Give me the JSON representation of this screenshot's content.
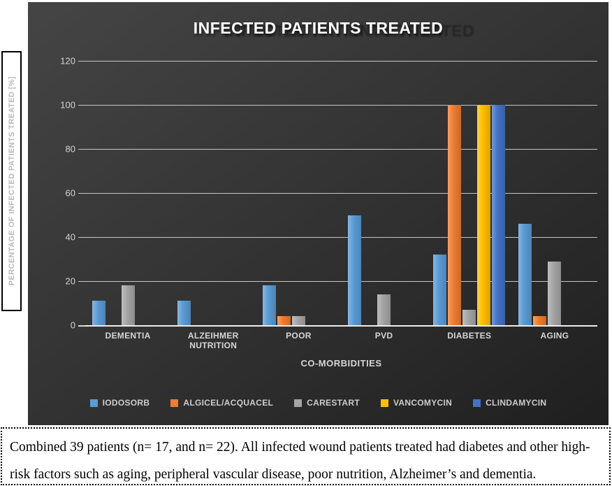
{
  "chart_data": {
    "type": "bar",
    "title": "INFECTED PATIENTS TREATED",
    "xlabel": "CO-MORBIDITIES",
    "ylabel": "PERCENTAGE OF INFECTED PATIENTS TREATED [%]",
    "ylim": [
      0,
      120
    ],
    "yticks": [
      0,
      20,
      40,
      60,
      80,
      100,
      120
    ],
    "grid": true,
    "legend_position": "bottom",
    "background": "#333333",
    "categories": [
      "DEMENTIA",
      "ALZEIHMER\nNUTRITION",
      "POOR",
      "PVD",
      "DIABETES",
      "AGING"
    ],
    "series": [
      {
        "name": "IODOSORB",
        "color": "#5B9BD5",
        "values": [
          11,
          11,
          18,
          50,
          32,
          46
        ]
      },
      {
        "name": "ALGICEL/ACQUACEL",
        "color": "#ED7D31",
        "values": [
          0,
          0,
          4,
          0,
          100,
          4
        ]
      },
      {
        "name": "CARESTART",
        "color": "#A5A5A5",
        "values": [
          18,
          0,
          4,
          14,
          7,
          29
        ]
      },
      {
        "name": "VANCOMYCIN",
        "color": "#FFC000",
        "values": [
          0,
          0,
          0,
          0,
          100,
          0
        ]
      },
      {
        "name": "CLINDAMYCIN",
        "color": "#4472C4",
        "values": [
          0,
          0,
          0,
          0,
          100,
          0
        ]
      }
    ]
  },
  "caption": "Combined 39 patients (n= 17, and n= 22). All infected wound patients treated had diabetes and other high-risk factors such as aging, peripheral vascular disease, poor nutrition, Alzheimer’s and dementia."
}
